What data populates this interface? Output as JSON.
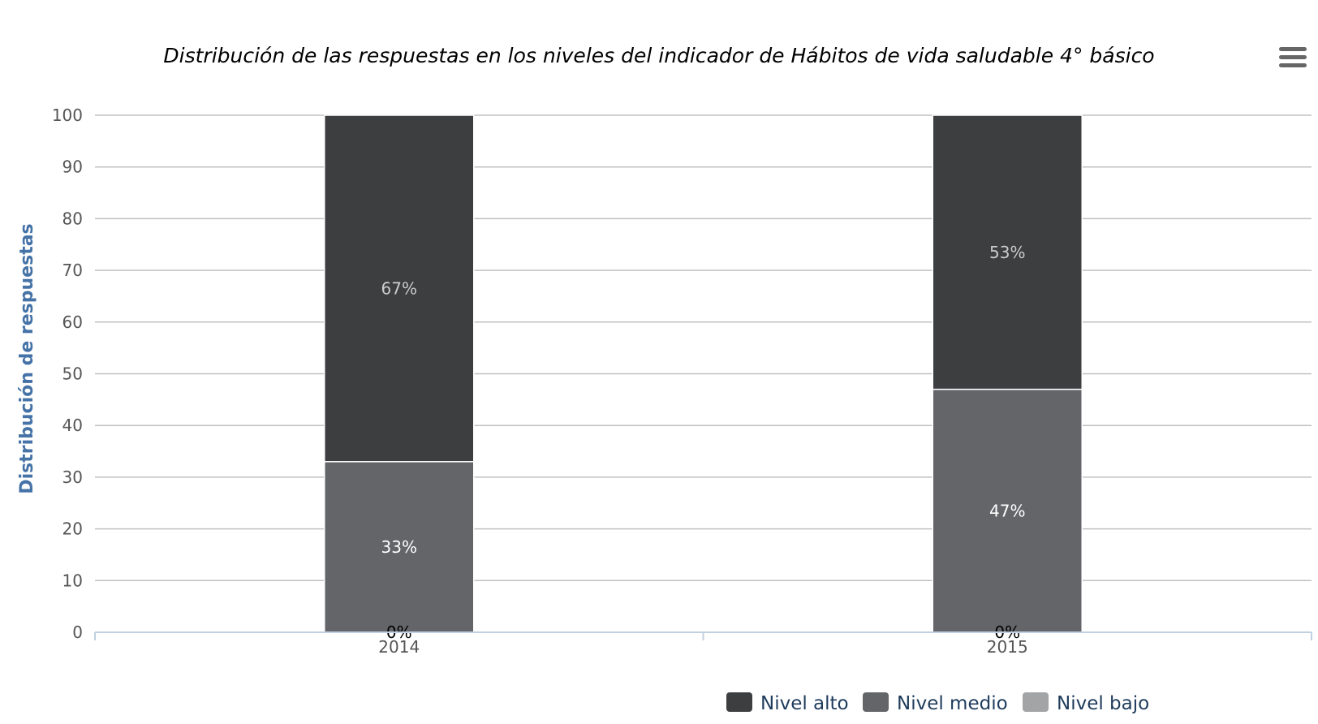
{
  "chart_data": {
    "type": "bar",
    "stacked": true,
    "title": "Distribución de las respuestas en los niveles del indicador de Hábitos de vida saludable 4° básico",
    "ylabel": "Distribución de respuestas",
    "ylim": [
      0,
      100
    ],
    "yticks": [
      "0",
      "10",
      "20",
      "30",
      "40",
      "50",
      "60",
      "70",
      "80",
      "90",
      "100"
    ],
    "categories": [
      "2014",
      "2015"
    ],
    "grid": true,
    "legend_position": "bottom-right",
    "series": [
      {
        "name": "Nivel alto",
        "color": "#3d3e40",
        "label_color": "#cccccc",
        "values": [
          67,
          53
        ],
        "labels": [
          "67%",
          "53%"
        ]
      },
      {
        "name": "Nivel medio",
        "color": "#646569",
        "label_color": "#ffffff",
        "values": [
          33,
          47
        ],
        "labels": [
          "33%",
          "47%"
        ]
      },
      {
        "name": "Nivel bajo",
        "color": "#a3a4a6",
        "label_color": "#000000",
        "values": [
          0,
          0
        ],
        "labels": [
          "0%",
          "0%"
        ]
      }
    ]
  },
  "menu": {
    "icon": "hamburger-menu-icon"
  }
}
